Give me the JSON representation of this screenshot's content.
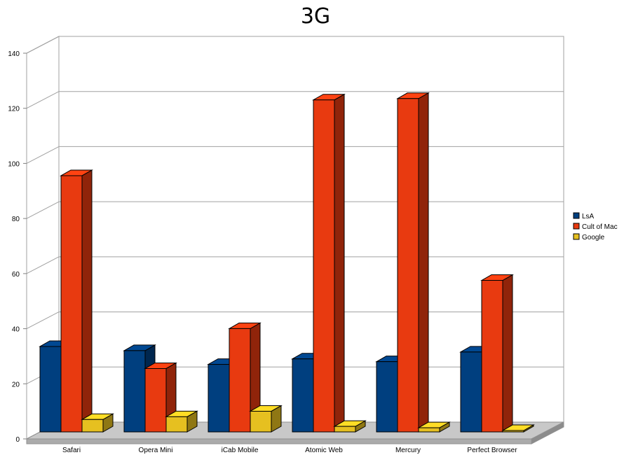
{
  "chart_data": {
    "type": "bar",
    "title": "3G",
    "xlabel": "",
    "ylabel": "",
    "ylim": [
      0,
      140
    ],
    "yticks": [
      "0",
      "20",
      "40",
      "60",
      "80",
      "100",
      "120",
      "140"
    ],
    "categories": [
      "Safari",
      "Opera Mini",
      "iCab Mobile",
      "Atomic Web",
      "Mercury",
      "Perfect Browser"
    ],
    "series": [
      {
        "name": "LsA",
        "color": "#003f7f",
        "values": [
          31,
          29.5,
          24.5,
          26.5,
          25.5,
          29
        ]
      },
      {
        "name": "Cult of Mac",
        "color": "#e83a10",
        "values": [
          93,
          23,
          37.5,
          120.5,
          121,
          55
        ]
      },
      {
        "name": "Google",
        "color": "#e6c020",
        "values": [
          4.5,
          5.5,
          7.5,
          2,
          1.5,
          0.5
        ]
      }
    ],
    "grid": true,
    "legend": "right",
    "three_d": true
  }
}
